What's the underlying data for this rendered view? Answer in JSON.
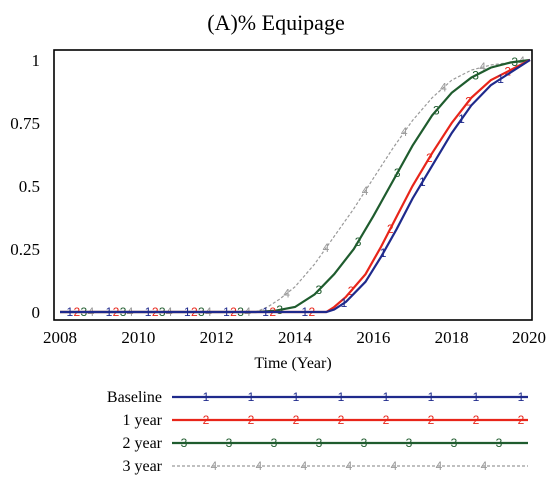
{
  "chart_data": {
    "type": "line",
    "title": "(A)% Equipage",
    "xlabel": "Time (Year)",
    "ylabel": "",
    "xlim": [
      2008,
      2020
    ],
    "ylim": [
      0,
      1
    ],
    "x_ticks": [
      "2008",
      "2010",
      "2012",
      "2014",
      "2016",
      "2018",
      "2020"
    ],
    "y_ticks": [
      "0",
      "0.25",
      "0.5",
      "0.75",
      "1"
    ],
    "grid": false,
    "legend_position": "bottom",
    "series": [
      {
        "name": "Baseline",
        "marker": "1",
        "color": "#1f2a8c",
        "x": [
          2008,
          2014,
          2014.8,
          2015.0,
          2015.3,
          2015.8,
          2016.2,
          2016.6,
          2017.0,
          2017.5,
          2018.0,
          2018.5,
          2019.0,
          2019.5,
          2020
        ],
        "y": [
          0,
          0,
          0,
          0.01,
          0.04,
          0.12,
          0.22,
          0.33,
          0.45,
          0.58,
          0.71,
          0.82,
          0.9,
          0.95,
          1
        ]
      },
      {
        "name": "1 year",
        "marker": "2",
        "color": "#e8251a",
        "x": [
          2008,
          2014,
          2014.8,
          2015.0,
          2015.3,
          2015.8,
          2016.2,
          2016.6,
          2017.0,
          2017.5,
          2018.0,
          2018.5,
          2019.0,
          2019.5,
          2020
        ],
        "y": [
          0,
          0,
          0,
          0.02,
          0.06,
          0.15,
          0.26,
          0.38,
          0.5,
          0.63,
          0.75,
          0.85,
          0.92,
          0.96,
          1
        ]
      },
      {
        "name": "2 year",
        "marker": "3",
        "color": "#1f5c2e",
        "x": [
          2008,
          2013.0,
          2013.5,
          2014.0,
          2014.5,
          2015.0,
          2015.5,
          2016.0,
          2016.5,
          2017.0,
          2017.5,
          2018.0,
          2018.5,
          2019.0,
          2019.5,
          2020
        ],
        "y": [
          0,
          0,
          0.005,
          0.02,
          0.07,
          0.15,
          0.25,
          0.38,
          0.52,
          0.66,
          0.78,
          0.87,
          0.93,
          0.97,
          0.99,
          1
        ]
      },
      {
        "name": "3 year",
        "marker": "4",
        "color": "#9a9a9a",
        "x": [
          2008,
          2013.0,
          2013.3,
          2013.6,
          2014.0,
          2014.5,
          2015.0,
          2015.5,
          2016.0,
          2016.5,
          2017.0,
          2017.5,
          2018.0,
          2018.5,
          2019.0,
          2019.5,
          2020
        ],
        "y": [
          0,
          0,
          0.02,
          0.05,
          0.1,
          0.19,
          0.3,
          0.41,
          0.53,
          0.65,
          0.76,
          0.85,
          0.92,
          0.96,
          0.98,
          0.99,
          1
        ]
      }
    ]
  }
}
